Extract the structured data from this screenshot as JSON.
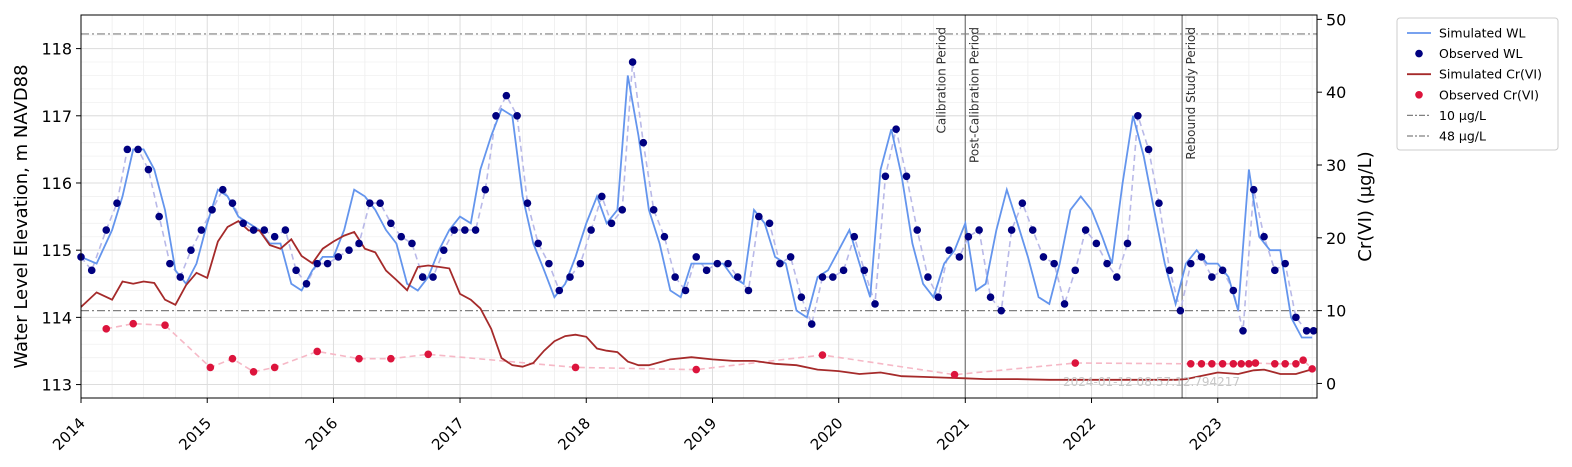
{
  "chart_data": {
    "type": "line",
    "xlabel": "",
    "ylabel_left": "Water Level Elevation, m NAVD88",
    "ylabel_right": "Cr(VI) (μg/L)",
    "xlim": [
      "2014-01-01",
      "2023-10-15"
    ],
    "ylim_left": [
      112.8,
      118.5
    ],
    "ylim_right": [
      -2,
      50.6
    ],
    "x_ticks": [
      "2014",
      "2015",
      "2016",
      "2017",
      "2018",
      "2019",
      "2020",
      "2021",
      "2022",
      "2023"
    ],
    "y_ticks_left": [
      113,
      114,
      115,
      116,
      117,
      118
    ],
    "y_ticks_right": [
      0,
      10,
      20,
      30,
      40,
      50
    ],
    "grid": "on (major and minor, light)",
    "legend_position": "outside top-right",
    "watermark": "2024-01-12 08:57:12.794217",
    "colors": {
      "sim_wl": "#6495ed",
      "obs_wl": "#000080",
      "obs_wl_dashed": "#b9b9e8",
      "sim_cr": "#a52a2a",
      "obs_cr": "#dc143c",
      "obs_cr_dashed": "#f6b8c6",
      "threshold": "#808080",
      "period_line": "#808080"
    },
    "period_markers": [
      {
        "date": "2021-01-01",
        "label_left": "Calibration Period",
        "label_right": "Post-Calibration Period"
      },
      {
        "date": "2022-09-20",
        "label_right": "Rebound Study Period"
      }
    ],
    "thresholds": [
      {
        "name": "10 μg/L",
        "value": 10
      },
      {
        "name": "48 μg/L",
        "value": 48
      }
    ],
    "series": [
      {
        "name": "Simulated WL",
        "axis": "left",
        "kind": "line",
        "x": [
          "2014-01-01",
          "2014-02-15",
          "2014-04-01",
          "2014-05-01",
          "2014-06-01",
          "2014-07-01",
          "2014-08-01",
          "2014-09-01",
          "2014-10-01",
          "2014-11-01",
          "2014-12-01",
          "2015-01-01",
          "2015-02-01",
          "2015-03-01",
          "2015-04-01",
          "2015-05-01",
          "2015-06-01",
          "2015-07-01",
          "2015-08-01",
          "2015-09-01",
          "2015-10-01",
          "2015-11-01",
          "2015-12-01",
          "2016-01-01",
          "2016-02-01",
          "2016-03-01",
          "2016-04-01",
          "2016-05-01",
          "2016-06-01",
          "2016-07-01",
          "2016-08-01",
          "2016-09-01",
          "2016-10-01",
          "2016-11-01",
          "2016-12-01",
          "2017-01-01",
          "2017-02-01",
          "2017-03-01",
          "2017-04-01",
          "2017-05-01",
          "2017-06-01",
          "2017-07-01",
          "2017-08-01",
          "2017-09-01",
          "2017-10-01",
          "2017-11-01",
          "2017-12-01",
          "2018-01-01",
          "2018-02-01",
          "2018-03-01",
          "2018-04-01",
          "2018-05-01",
          "2018-06-01",
          "2018-07-01",
          "2018-08-01",
          "2018-09-01",
          "2018-10-01",
          "2018-11-01",
          "2018-12-01",
          "2019-01-01",
          "2019-02-01",
          "2019-03-01",
          "2019-04-01",
          "2019-05-01",
          "2019-06-01",
          "2019-07-01",
          "2019-08-01",
          "2019-09-01",
          "2019-10-01",
          "2019-11-01",
          "2019-12-01",
          "2020-01-01",
          "2020-02-01",
          "2020-03-01",
          "2020-04-01",
          "2020-05-01",
          "2020-06-01",
          "2020-07-01",
          "2020-08-01",
          "2020-09-01",
          "2020-10-01",
          "2020-11-01",
          "2020-12-01",
          "2021-01-01",
          "2021-02-01",
          "2021-03-01",
          "2021-04-01",
          "2021-05-01",
          "2021-06-01",
          "2021-07-01",
          "2021-08-01",
          "2021-09-01",
          "2021-10-01",
          "2021-11-01",
          "2021-12-01",
          "2022-01-01",
          "2022-02-01",
          "2022-03-01",
          "2022-04-01",
          "2022-05-01",
          "2022-06-01",
          "2022-07-01",
          "2022-08-01",
          "2022-09-01",
          "2022-10-01",
          "2022-11-01",
          "2022-12-01",
          "2023-01-01",
          "2023-02-01",
          "2023-03-01",
          "2023-04-01",
          "2023-05-01",
          "2023-06-01",
          "2023-07-01",
          "2023-08-01",
          "2023-09-01",
          "2023-10-01"
        ],
        "values": [
          114.9,
          114.8,
          115.3,
          115.8,
          116.5,
          116.5,
          116.2,
          115.6,
          114.7,
          114.5,
          114.8,
          115.4,
          115.9,
          115.8,
          115.5,
          115.4,
          115.3,
          115.1,
          115.1,
          114.5,
          114.4,
          114.7,
          114.9,
          114.9,
          115.3,
          115.9,
          115.8,
          115.6,
          115.3,
          115.1,
          114.5,
          114.4,
          114.6,
          115.0,
          115.3,
          115.5,
          115.4,
          116.2,
          116.7,
          117.1,
          117.0,
          115.8,
          115.1,
          114.7,
          114.3,
          114.5,
          114.9,
          115.4,
          115.8,
          115.4,
          115.6,
          117.6,
          116.7,
          115.6,
          115.1,
          114.4,
          114.3,
          114.8,
          114.8,
          114.8,
          114.8,
          114.6,
          114.5,
          115.6,
          115.4,
          114.9,
          114.8,
          114.1,
          114.0,
          114.6,
          114.7,
          115.0,
          115.3,
          114.8,
          114.3,
          116.2,
          116.8,
          116.1,
          115.1,
          114.5,
          114.3,
          114.8,
          115.0,
          115.4,
          114.4,
          114.5,
          115.3,
          115.9,
          115.4,
          114.9,
          114.3,
          114.2,
          114.8,
          115.6,
          115.8,
          115.6,
          115.2,
          114.8,
          116.0,
          117.0,
          116.4,
          115.6,
          114.8,
          114.2,
          114.8,
          115.0,
          114.8,
          114.8,
          114.6,
          114.1,
          116.2,
          115.2,
          115.0,
          115.0,
          114.0,
          113.7,
          113.7
        ]
      },
      {
        "name": "Observed WL",
        "axis": "left",
        "kind": "points",
        "x": [
          "2014-01-01",
          "2014-02-01",
          "2014-03-15",
          "2014-04-15",
          "2014-05-15",
          "2014-06-15",
          "2014-07-15",
          "2014-08-15",
          "2014-09-15",
          "2014-10-15",
          "2014-11-15",
          "2014-12-15",
          "2015-01-15",
          "2015-02-15",
          "2015-03-15",
          "2015-04-15",
          "2015-05-15",
          "2015-06-15",
          "2015-07-15",
          "2015-08-15",
          "2015-09-15",
          "2015-10-15",
          "2015-11-15",
          "2015-12-15",
          "2016-01-15",
          "2016-02-15",
          "2016-03-15",
          "2016-04-15",
          "2016-05-15",
          "2016-06-15",
          "2016-07-15",
          "2016-08-15",
          "2016-09-15",
          "2016-10-15",
          "2016-11-15",
          "2016-12-15",
          "2017-01-15",
          "2017-02-15",
          "2017-03-15",
          "2017-04-15",
          "2017-05-15",
          "2017-06-15",
          "2017-07-15",
          "2017-08-15",
          "2017-09-15",
          "2017-10-15",
          "2017-11-15",
          "2017-12-15",
          "2018-01-15",
          "2018-02-15",
          "2018-03-15",
          "2018-04-15",
          "2018-05-15",
          "2018-06-15",
          "2018-07-15",
          "2018-08-15",
          "2018-09-15",
          "2018-10-15",
          "2018-11-15",
          "2018-12-15",
          "2019-01-15",
          "2019-02-15",
          "2019-03-15",
          "2019-04-15",
          "2019-05-15",
          "2019-06-15",
          "2019-07-15",
          "2019-08-15",
          "2019-09-15",
          "2019-10-15",
          "2019-11-15",
          "2019-12-15",
          "2020-01-15",
          "2020-02-15",
          "2020-03-15",
          "2020-04-15",
          "2020-05-15",
          "2020-06-15",
          "2020-07-15",
          "2020-08-15",
          "2020-09-15",
          "2020-10-15",
          "2020-11-15",
          "2020-12-15",
          "2021-01-10",
          "2021-02-10",
          "2021-03-15",
          "2021-04-15",
          "2021-05-15",
          "2021-06-15",
          "2021-07-15",
          "2021-08-15",
          "2021-09-15",
          "2021-10-15",
          "2021-11-15",
          "2021-12-15",
          "2022-01-15",
          "2022-02-15",
          "2022-03-15",
          "2022-04-15",
          "2022-05-15",
          "2022-06-15",
          "2022-07-15",
          "2022-08-15",
          "2022-09-15",
          "2022-10-15",
          "2022-11-15",
          "2022-12-15",
          "2023-01-15",
          "2023-02-15",
          "2023-03-15",
          "2023-04-15",
          "2023-05-15",
          "2023-06-15",
          "2023-07-15",
          "2023-08-15",
          "2023-09-15",
          "2023-10-05"
        ],
        "values": [
          114.9,
          114.7,
          115.3,
          115.7,
          116.5,
          116.5,
          116.2,
          115.5,
          114.8,
          114.6,
          115.0,
          115.3,
          115.6,
          115.9,
          115.7,
          115.4,
          115.3,
          115.3,
          115.2,
          115.3,
          114.7,
          114.5,
          114.8,
          114.8,
          114.9,
          115.0,
          115.1,
          115.7,
          115.7,
          115.4,
          115.2,
          115.1,
          114.6,
          114.6,
          115.0,
          115.3,
          115.3,
          115.3,
          115.9,
          117.0,
          117.3,
          117.0,
          115.7,
          115.1,
          114.8,
          114.4,
          114.6,
          114.8,
          115.3,
          115.8,
          115.4,
          115.6,
          117.8,
          116.6,
          115.6,
          115.2,
          114.6,
          114.4,
          114.9,
          114.7,
          114.8,
          114.8,
          114.6,
          114.4,
          115.5,
          115.4,
          114.8,
          114.9,
          114.3,
          113.9,
          114.6,
          114.6,
          114.7,
          115.2,
          114.7,
          114.2,
          116.1,
          116.8,
          116.1,
          115.3,
          114.6,
          114.3,
          115.0,
          114.9,
          115.2,
          115.3,
          114.3,
          114.1,
          115.3,
          115.7,
          115.3,
          114.9,
          114.8,
          114.2,
          114.7,
          115.3,
          115.1,
          114.8,
          114.6,
          115.1,
          117.0,
          116.5,
          115.7,
          114.7,
          114.1,
          114.8,
          114.9,
          114.6,
          114.7,
          114.4,
          113.8,
          115.9,
          115.2,
          114.7,
          114.8,
          114.0,
          113.8,
          113.8
        ]
      },
      {
        "name": "Simulated Cr(VI)",
        "axis": "right",
        "kind": "line",
        "x": [
          "2014-01-01",
          "2014-02-15",
          "2014-04-01",
          "2014-05-01",
          "2014-06-01",
          "2014-07-01",
          "2014-08-01",
          "2014-09-01",
          "2014-10-01",
          "2014-11-01",
          "2014-12-01",
          "2015-01-01",
          "2015-02-01",
          "2015-03-01",
          "2015-04-01",
          "2015-05-01",
          "2015-06-01",
          "2015-07-01",
          "2015-08-01",
          "2015-09-01",
          "2015-10-01",
          "2015-11-01",
          "2015-12-01",
          "2016-01-01",
          "2016-02-01",
          "2016-03-01",
          "2016-04-01",
          "2016-05-01",
          "2016-06-01",
          "2016-07-01",
          "2016-08-01",
          "2016-09-01",
          "2016-10-01",
          "2016-11-01",
          "2016-12-01",
          "2017-01-01",
          "2017-02-01",
          "2017-03-01",
          "2017-04-01",
          "2017-05-01",
          "2017-06-01",
          "2017-07-01",
          "2017-08-01",
          "2017-09-01",
          "2017-10-01",
          "2017-11-01",
          "2017-12-01",
          "2018-01-01",
          "2018-02-01",
          "2018-03-01",
          "2018-04-01",
          "2018-05-01",
          "2018-06-01",
          "2018-07-01",
          "2018-09-01",
          "2018-11-01",
          "2019-01-01",
          "2019-03-01",
          "2019-05-01",
          "2019-07-01",
          "2019-09-01",
          "2019-11-01",
          "2020-01-01",
          "2020-03-01",
          "2020-05-01",
          "2020-07-01",
          "2020-09-01",
          "2020-11-01",
          "2021-01-01",
          "2021-03-01",
          "2021-06-01",
          "2021-09-01",
          "2022-01-01",
          "2022-05-01",
          "2022-09-01",
          "2022-10-01",
          "2023-01-01",
          "2023-03-01",
          "2023-04-15",
          "2023-05-15",
          "2023-07-01",
          "2023-08-15",
          "2023-10-05"
        ],
        "values": [
          10.5,
          12.5,
          11.5,
          14.0,
          13.7,
          14.0,
          13.8,
          11.5,
          10.8,
          13.5,
          15.2,
          14.5,
          19.5,
          21.5,
          22.3,
          21.0,
          21.0,
          19.0,
          18.5,
          19.8,
          17.5,
          16.5,
          18.5,
          19.5,
          20.3,
          20.8,
          18.5,
          18.0,
          15.5,
          14.2,
          12.8,
          16.0,
          16.2,
          16.0,
          15.8,
          12.3,
          11.5,
          10.3,
          7.5,
          3.5,
          2.5,
          2.3,
          2.8,
          4.5,
          5.8,
          6.5,
          6.7,
          6.4,
          4.8,
          4.5,
          4.3,
          3.0,
          2.5,
          2.5,
          3.3,
          3.6,
          3.3,
          3.1,
          3.1,
          2.7,
          2.5,
          1.9,
          1.7,
          1.3,
          1.5,
          1.0,
          0.9,
          0.8,
          0.7,
          0.6,
          0.6,
          0.5,
          0.5,
          0.5,
          0.5,
          0.6,
          1.5,
          1.3,
          1.8,
          1.9,
          1.3,
          1.3,
          2.0
        ]
      },
      {
        "name": "Observed Cr(VI)",
        "axis": "right",
        "kind": "points",
        "x": [
          "2014-03-15",
          "2014-06-01",
          "2014-09-01",
          "2015-01-10",
          "2015-03-15",
          "2015-05-15",
          "2015-07-15",
          "2015-11-15",
          "2016-03-15",
          "2016-06-15",
          "2016-10-01",
          "2017-12-01",
          "2018-11-15",
          "2019-11-15",
          "2020-12-01",
          "2021-11-15",
          "2022-10-15",
          "2022-11-15",
          "2022-12-15",
          "2023-01-15",
          "2023-02-15",
          "2023-03-10",
          "2023-04-01",
          "2023-04-20",
          "2023-06-15",
          "2023-07-15",
          "2023-08-15",
          "2023-09-05",
          "2023-10-01"
        ],
        "values": [
          7.5,
          8.2,
          8.0,
          2.2,
          3.4,
          1.6,
          2.2,
          4.4,
          3.4,
          3.4,
          4.0,
          2.2,
          1.9,
          3.9,
          1.2,
          2.8,
          2.7,
          2.7,
          2.7,
          2.7,
          2.7,
          2.7,
          2.7,
          2.8,
          2.7,
          2.7,
          2.7,
          3.2,
          2.0
        ]
      },
      {
        "name": "10 μg/L",
        "axis": "right",
        "kind": "hline",
        "value": 10
      },
      {
        "name": "48 μg/L",
        "axis": "right",
        "kind": "hline",
        "value": 48
      }
    ]
  }
}
